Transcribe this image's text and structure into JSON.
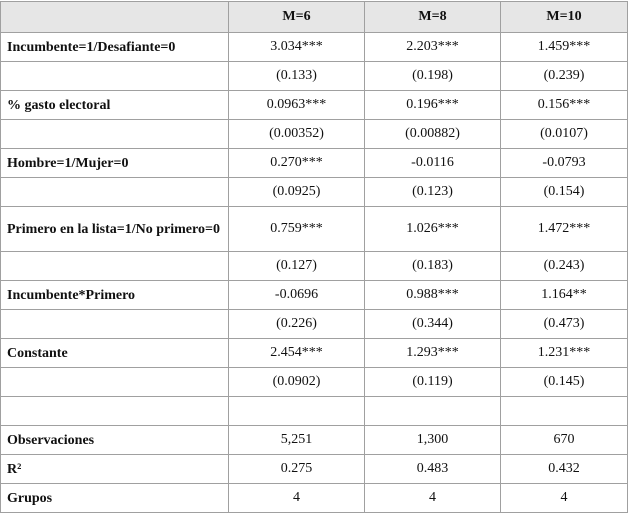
{
  "table": {
    "columns": [
      "M=6",
      "M=8",
      "M=10"
    ],
    "coefficients": [
      {
        "label": "Incumbente=1/Desafiante=0",
        "cells": [
          "3.034***",
          "2.203***",
          "1.459***"
        ]
      },
      {
        "cells": [
          "(0.133)",
          "(0.198)",
          "(0.239)"
        ]
      },
      {
        "label": "% gasto electoral",
        "cells": [
          "0.0963***",
          "0.196***",
          "0.156***"
        ]
      },
      {
        "cells": [
          "(0.00352)",
          "(0.00882)",
          "(0.0107)"
        ]
      },
      {
        "label": "Hombre=1/Mujer=0",
        "cells": [
          "0.270***",
          "-0.0116",
          "-0.0793"
        ]
      },
      {
        "cells": [
          "(0.0925)",
          "(0.123)",
          "(0.154)"
        ]
      },
      {
        "label": "Primero en la lista=1/No primero=0",
        "cells": [
          "0.759***",
          "1.026***",
          "1.472***"
        ]
      },
      {
        "cells": [
          "(0.127)",
          "(0.183)",
          "(0.243)"
        ]
      },
      {
        "label": "Incumbente*Primero",
        "cells": [
          "-0.0696",
          "0.988***",
          "1.164**"
        ]
      },
      {
        "cells": [
          "(0.226)",
          "(0.344)",
          "(0.473)"
        ]
      },
      {
        "label": "Constante",
        "cells": [
          "2.454***",
          "1.293***",
          "1.231***"
        ]
      },
      {
        "cells": [
          "(0.0902)",
          "(0.119)",
          "(0.145)"
        ]
      }
    ],
    "statistics": [
      {
        "label": "Observaciones",
        "cells": [
          "5,251",
          "1,300",
          "670"
        ]
      },
      {
        "label": "R²",
        "cells": [
          "0.275",
          "0.483",
          "0.432"
        ]
      },
      {
        "label": "Grupos",
        "cells": [
          "4",
          "4",
          "4"
        ]
      }
    ]
  }
}
